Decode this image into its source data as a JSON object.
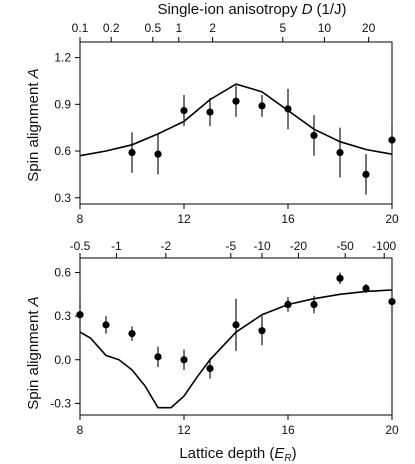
{
  "chart_data": [
    {
      "type": "scatter",
      "ylabel": "Spin alignment A",
      "ylabel_text": "Spin alignment ",
      "ylabel_var": "A",
      "xlim": [
        8,
        20
      ],
      "ylim": [
        0.26,
        1.3
      ],
      "xticks": [
        8,
        12,
        16,
        20
      ],
      "xtick_labels": [
        "8",
        "12",
        "16",
        "20"
      ],
      "yticks": [
        0.3,
        0.6,
        0.9,
        1.2
      ],
      "ytick_labels": [
        "0.3",
        "0.6",
        "0.9",
        "1.2"
      ],
      "top_axis": {
        "label_text": "Single-ion anisotropy ",
        "label_var": "D",
        "label_unit": "(1/J)",
        "ticks": [
          {
            "label": "0.1",
            "at": 8.0
          },
          {
            "label": "0.2",
            "at": 9.2
          },
          {
            "label": "0.5",
            "at": 10.8
          },
          {
            "label": "1",
            "at": 11.8
          },
          {
            "label": "2",
            "at": 13.1
          },
          {
            "label": "5",
            "at": 15.8
          },
          {
            "label": "10",
            "at": 17.4
          },
          {
            "label": "20",
            "at": 19.1
          }
        ]
      },
      "series": [
        {
          "kind": "points",
          "x": [
            10,
            11,
            12,
            13,
            14,
            15,
            16,
            17,
            18,
            19,
            20
          ],
          "y": [
            0.59,
            0.58,
            0.86,
            0.85,
            0.92,
            0.89,
            0.87,
            0.7,
            0.59,
            0.45,
            0.67
          ],
          "err": [
            0.13,
            0.13,
            0.1,
            0.09,
            0.1,
            0.07,
            0.13,
            0.13,
            0.16,
            0.13,
            0.1
          ]
        },
        {
          "kind": "line",
          "x": [
            8,
            9,
            10,
            11,
            12,
            13,
            14,
            15,
            16,
            17,
            18,
            19,
            20
          ],
          "y": [
            0.57,
            0.6,
            0.64,
            0.71,
            0.79,
            0.93,
            1.03,
            0.98,
            0.86,
            0.74,
            0.66,
            0.61,
            0.58
          ]
        }
      ]
    },
    {
      "type": "scatter",
      "ylabel": "Spin alignment A",
      "ylabel_text": "Spin alignment ",
      "ylabel_var": "A",
      "xlabel": "Lattice depth (E_R)",
      "xlabel_text": "Lattice depth (",
      "xlabel_var": "E",
      "xlabel_sub": "R",
      "xlabel_close": ")",
      "xlim": [
        8,
        20
      ],
      "ylim": [
        -0.38,
        0.7
      ],
      "xticks": [
        8,
        12,
        16,
        20
      ],
      "xtick_labels": [
        "8",
        "12",
        "16",
        "20"
      ],
      "yticks": [
        -0.3,
        0.0,
        0.3,
        0.6
      ],
      "ytick_labels": [
        "-0.3",
        "0.0",
        "0.3",
        "0.6"
      ],
      "top_axis": {
        "ticks": [
          {
            "label": "-0.5",
            "at": 8.0
          },
          {
            "label": "-1",
            "at": 9.4
          },
          {
            "label": "-2",
            "at": 11.3
          },
          {
            "label": "-5",
            "at": 13.8
          },
          {
            "label": "-10",
            "at": 15.0
          },
          {
            "label": "-20",
            "at": 16.4
          },
          {
            "label": "-50",
            "at": 18.2
          },
          {
            "label": "-100",
            "at": 19.7
          }
        ]
      },
      "series": [
        {
          "kind": "points",
          "x": [
            8,
            9,
            10,
            11,
            12,
            13,
            14,
            15,
            16,
            17,
            18,
            19,
            20
          ],
          "y": [
            0.31,
            0.24,
            0.18,
            0.02,
            0.0,
            -0.06,
            0.24,
            0.2,
            0.38,
            0.38,
            0.56,
            0.49,
            0.4
          ],
          "err": [
            0.12,
            0.06,
            0.05,
            0.07,
            0.07,
            0.07,
            0.18,
            0.1,
            0.05,
            0.06,
            0.04,
            0.03,
            0.08
          ]
        },
        {
          "kind": "line",
          "x": [
            8,
            8.4,
            9,
            9.5,
            10,
            10.5,
            11,
            11.5,
            12,
            12.5,
            13,
            14,
            15,
            16,
            17,
            18,
            19,
            20
          ],
          "y": [
            0.19,
            0.15,
            0.03,
            0.0,
            -0.07,
            -0.18,
            -0.33,
            -0.33,
            -0.25,
            -0.12,
            0.0,
            0.19,
            0.31,
            0.38,
            0.42,
            0.45,
            0.47,
            0.48
          ]
        }
      ]
    }
  ]
}
